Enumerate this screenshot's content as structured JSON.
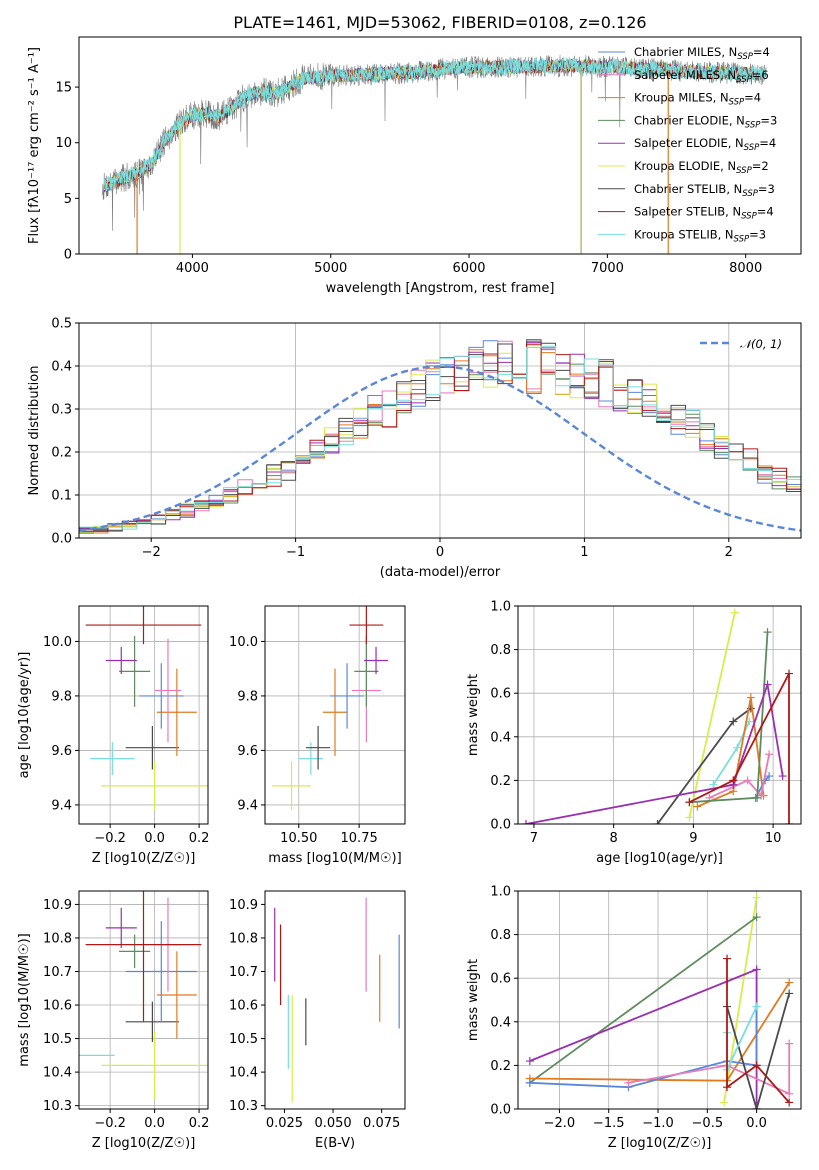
{
  "figure_title": "PLATE=1461, MJD=53062, FIBERID=0108, z=0.126",
  "colors": {
    "blue": "#5a88d6",
    "orange": "#e07b22",
    "green": "#5e8c5e",
    "purple": "#9a30b0",
    "yellowgreen": "#d8ec4a",
    "darkgray": "#4a4a4a",
    "red": "#b01818",
    "cyan": "#78dede",
    "pink": "#e87bb8",
    "spectrum_gray": "#7a7a7a",
    "normal_dashed": "#5a88d6"
  },
  "chart_data": [
    {
      "id": "spectrum",
      "type": "line",
      "xlabel": "wavelength [Angstrom, rest frame]",
      "ylabel": "Flux [fλ10⁻¹⁷ erg cm⁻² s⁻¹ A⁻¹]",
      "xlim": [
        3180,
        8400
      ],
      "ylim": [
        0,
        19.5
      ],
      "xticks": [
        "4000",
        "5000",
        "6000",
        "7000",
        "8000"
      ],
      "yticks": [
        "0",
        "5",
        "10",
        "15"
      ],
      "spectrum_envelope": {
        "x": [
          3350,
          3500,
          3600,
          3700,
          3800,
          3900,
          4000,
          4100,
          4200,
          4300,
          4400,
          4500,
          4600,
          4700,
          4800,
          4900,
          5000,
          5200,
          5400,
          5600,
          5800,
          6000,
          6200,
          6400,
          6600,
          6800,
          7000,
          7200,
          7400,
          7600,
          7800,
          8000,
          8150
        ],
        "y": [
          6.0,
          6.8,
          7.2,
          8.0,
          10.2,
          11.6,
          12.5,
          12.6,
          12.3,
          13.3,
          14.3,
          14.6,
          14.4,
          15.0,
          15.8,
          15.9,
          16.0,
          16.1,
          16.2,
          16.3,
          16.6,
          16.8,
          16.8,
          16.8,
          16.9,
          16.9,
          16.8,
          16.7,
          16.6,
          16.4,
          16.3,
          16.2,
          16.1
        ]
      },
      "legend": [
        {
          "label": "Chabrier MILES, N",
          "sub": "SSP",
          "suffix": "=4",
          "color": "#5a88d6"
        },
        {
          "label": "Salpeter MILES, N",
          "sub": "SSP",
          "suffix": "=6",
          "color": "#e87bb8"
        },
        {
          "label": "Kroupa MILES, N",
          "sub": "SSP",
          "suffix": "=4",
          "color": "#e07b22"
        },
        {
          "label": "Chabrier ELODIE, N",
          "sub": "SSP",
          "suffix": "=3",
          "color": "#5e8c5e"
        },
        {
          "label": "Salpeter ELODIE, N",
          "sub": "SSP",
          "suffix": "=4",
          "color": "#9a30b0"
        },
        {
          "label": "Kroupa ELODIE, N",
          "sub": "SSP",
          "suffix": "=2",
          "color": "#d8ec4a"
        },
        {
          "label": "Chabrier STELIB, N",
          "sub": "SSP",
          "suffix": "=3",
          "color": "#4a4a4a"
        },
        {
          "label": "Salpeter STELIB, N",
          "sub": "SSP",
          "suffix": "=4",
          "color": "#b01818"
        },
        {
          "label": "Kroupa STELIB, N",
          "sub": "SSP",
          "suffix": "=3",
          "color": "#78dede"
        }
      ]
    },
    {
      "id": "residual-histogram",
      "type": "line",
      "xlabel": "(data-model)/error",
      "ylabel": "Normed distribution",
      "xlim": [
        -2.5,
        2.5
      ],
      "ylim": [
        0,
        0.5
      ],
      "xticks": [
        "−2",
        "−1",
        "0",
        "1",
        "2"
      ],
      "yticks": [
        "0.0",
        "0.1",
        "0.2",
        "0.3",
        "0.4",
        "0.5"
      ],
      "grid": true,
      "legend": "𝒩(0, 1)",
      "legend_position": "top-right",
      "bin_width": 0.1,
      "bin_start": -2.5,
      "base_hist": [
        0.02,
        0.02,
        0.025,
        0.03,
        0.035,
        0.045,
        0.055,
        0.065,
        0.075,
        0.085,
        0.1,
        0.115,
        0.13,
        0.145,
        0.16,
        0.18,
        0.2,
        0.22,
        0.245,
        0.265,
        0.285,
        0.305,
        0.325,
        0.345,
        0.36,
        0.375,
        0.385,
        0.395,
        0.4,
        0.405,
        0.4,
        0.398,
        0.395,
        0.39,
        0.38,
        0.37,
        0.36,
        0.345,
        0.33,
        0.315,
        0.295,
        0.275,
        0.255,
        0.235,
        0.215,
        0.195,
        0.175,
        0.155,
        0.14,
        0.12,
        0.105,
        0.09,
        0.078,
        0.066,
        0.056,
        0.048,
        0.04,
        0.034,
        0.028,
        0.024
      ]
    },
    {
      "id": "age-vs-z",
      "type": "scatter",
      "xlabel": "Z [log10(Z/Z☉)]",
      "ylabel": "age  [log10(age/yr)]",
      "xlim": [
        -0.34,
        0.24
      ],
      "ylim": [
        9.33,
        10.13
      ],
      "xticks": [
        "−0.2",
        "0.0",
        "0.2"
      ],
      "yticks": [
        "9.4",
        "9.6",
        "9.8",
        "10.0"
      ],
      "grid": true,
      "points": [
        {
          "x": 0.0,
          "y": 9.47,
          "ex": 0.24,
          "ey": 0.09,
          "color": "#d8ec4a"
        },
        {
          "x": -0.19,
          "y": 9.57,
          "ex": 0.1,
          "ey": 0.06,
          "color": "#78dede"
        },
        {
          "x": -0.01,
          "y": 9.61,
          "ex": 0.12,
          "ey": 0.08,
          "color": "#4a4a4a"
        },
        {
          "x": 0.1,
          "y": 9.74,
          "ex": 0.09,
          "ey": 0.16,
          "color": "#e07b22"
        },
        {
          "x": 0.03,
          "y": 9.8,
          "ex": 0.1,
          "ey": 0.12,
          "color": "#5a88d6"
        },
        {
          "x": 0.06,
          "y": 9.82,
          "ex": 0.06,
          "ey": 0.19,
          "color": "#e87bb8"
        },
        {
          "x": -0.09,
          "y": 9.89,
          "ex": 0.07,
          "ey": 0.13,
          "color": "#5e8c5e"
        },
        {
          "x": -0.15,
          "y": 9.93,
          "ex": 0.07,
          "ey": 0.05,
          "color": "#9a30b0"
        },
        {
          "x": -0.05,
          "y": 10.06,
          "ex": 0.26,
          "ey": 0.07,
          "color": "#b01818"
        }
      ]
    },
    {
      "id": "age-vs-mass",
      "type": "scatter",
      "xlabel": "mass [log10(M/M☉)]",
      "ylabel": "",
      "xlim": [
        10.36,
        10.94
      ],
      "ylim": [
        9.33,
        10.13
      ],
      "xticks": [
        "10.50",
        "10.75"
      ],
      "yticks": [
        "9.4",
        "9.6",
        "9.8",
        "10.0"
      ],
      "grid": true,
      "points": [
        {
          "x": 10.47,
          "y": 9.47,
          "ex": 0.08,
          "ey": 0.09,
          "color": "#d8ec4a"
        },
        {
          "x": 10.55,
          "y": 9.57,
          "ex": 0.05,
          "ey": 0.06,
          "color": "#78dede"
        },
        {
          "x": 10.58,
          "y": 9.61,
          "ex": 0.05,
          "ey": 0.08,
          "color": "#4a4a4a"
        },
        {
          "x": 10.65,
          "y": 9.74,
          "ex": 0.05,
          "ey": 0.16,
          "color": "#e07b22"
        },
        {
          "x": 10.7,
          "y": 9.8,
          "ex": 0.07,
          "ey": 0.12,
          "color": "#5a88d6"
        },
        {
          "x": 10.78,
          "y": 9.82,
          "ex": 0.06,
          "ey": 0.19,
          "color": "#e87bb8"
        },
        {
          "x": 10.78,
          "y": 9.89,
          "ex": 0.05,
          "ey": 0.13,
          "color": "#5e8c5e"
        },
        {
          "x": 10.82,
          "y": 9.93,
          "ex": 0.05,
          "ey": 0.05,
          "color": "#9a30b0"
        },
        {
          "x": 10.78,
          "y": 10.06,
          "ex": 0.07,
          "ey": 0.07,
          "color": "#b01818"
        }
      ]
    },
    {
      "id": "weight-vs-age",
      "type": "line",
      "xlabel": "age  [log10(age/yr)]",
      "ylabel": "mass weight",
      "xlim": [
        6.8,
        10.35
      ],
      "ylim": [
        0,
        1
      ],
      "xticks": [
        "7",
        "8",
        "9",
        "10"
      ],
      "yticks": [
        "0.0",
        "0.2",
        "0.4",
        "0.6",
        "0.8",
        "1.0"
      ],
      "grid": true,
      "series": [
        {
          "color": "#d8ec4a",
          "x": [
            8.95,
            9.52
          ],
          "y": [
            0.03,
            0.97
          ]
        },
        {
          "color": "#78dede",
          "x": [
            9.25,
            9.55,
            9.7
          ],
          "y": [
            0.18,
            0.35,
            0.47
          ]
        },
        {
          "color": "#4a4a4a",
          "x": [
            8.55,
            9.5,
            9.72
          ],
          "y": [
            0.0,
            0.47,
            0.53
          ]
        },
        {
          "color": "#e07b22",
          "x": [
            9.05,
            9.5,
            9.72,
            9.88
          ],
          "y": [
            0.08,
            0.15,
            0.58,
            0.13
          ]
        },
        {
          "color": "#5a88d6",
          "x": [
            9.78,
            9.9,
            9.95
          ],
          "y": [
            0.12,
            0.2,
            0.22
          ]
        },
        {
          "color": "#e87bb8",
          "x": [
            9.2,
            9.68,
            9.85,
            9.95
          ],
          "y": [
            0.12,
            0.2,
            0.13,
            0.32
          ]
        },
        {
          "color": "#5e8c5e",
          "x": [
            8.95,
            9.8,
            9.93
          ],
          "y": [
            0.1,
            0.12,
            0.88
          ]
        },
        {
          "color": "#9a30b0",
          "x": [
            6.9,
            9.5,
            9.93,
            10.12
          ],
          "y": [
            0.0,
            0.18,
            0.64,
            0.22
          ]
        },
        {
          "color": "#b01818",
          "x": [
            8.95,
            9.5,
            10.2,
            10.2
          ],
          "y": [
            0.1,
            0.2,
            0.69,
            0.0
          ]
        }
      ]
    },
    {
      "id": "mass-vs-z",
      "type": "scatter",
      "xlabel": "Z [log10(Z/Z☉)]",
      "ylabel": "mass [log10(M/M☉)]",
      "xlim": [
        -0.34,
        0.24
      ],
      "ylim": [
        10.29,
        10.94
      ],
      "xticks": [
        "−0.2",
        "0.0",
        "0.2"
      ],
      "yticks": [
        "10.3",
        "10.4",
        "10.5",
        "10.6",
        "10.7",
        "10.8",
        "10.9"
      ],
      "grid": true,
      "points": [
        {
          "x": -0.28,
          "y": 10.45,
          "ex": 0.1,
          "ey": 0.0,
          "color": "#78dede"
        },
        {
          "x": 0.0,
          "y": 10.42,
          "ex": 0.24,
          "ey": 0.1,
          "color": "#d8ec4a"
        },
        {
          "x": -0.01,
          "y": 10.55,
          "ex": 0.12,
          "ey": 0.06,
          "color": "#4a4a4a"
        },
        {
          "x": 0.1,
          "y": 10.63,
          "ex": 0.09,
          "ey": 0.13,
          "color": "#e07b22"
        },
        {
          "x": 0.03,
          "y": 10.7,
          "ex": 0.16,
          "ey": 0.15,
          "color": "#5a88d6"
        },
        {
          "x": 0.06,
          "y": 10.78,
          "ex": 0.06,
          "ey": 0.14,
          "color": "#e87bb8"
        },
        {
          "x": -0.09,
          "y": 10.76,
          "ex": 0.07,
          "ey": 0.05,
          "color": "#5e8c5e"
        },
        {
          "x": -0.15,
          "y": 10.83,
          "ex": 0.07,
          "ey": 0.06,
          "color": "#9a30b0"
        },
        {
          "x": -0.05,
          "y": 10.78,
          "ex": 0.26,
          "ey": 0.23,
          "color": "#b01818"
        }
      ]
    },
    {
      "id": "mass-vs-ebv",
      "type": "scatter",
      "xlabel": "E(B-V)",
      "ylabel": "",
      "xlim": [
        0.015,
        0.087
      ],
      "ylim": [
        10.29,
        10.94
      ],
      "xticks": [
        "0.025",
        "0.050",
        "0.075"
      ],
      "yticks": [
        "10.3",
        "10.4",
        "10.5",
        "10.6",
        "10.7",
        "10.8",
        "10.9"
      ],
      "grid": false,
      "points": [
        {
          "x": 0.02,
          "y": 10.78,
          "ex": 0.0,
          "ey": 0.11,
          "color": "#9a30b0"
        },
        {
          "x": 0.023,
          "y": 10.72,
          "ex": 0.0,
          "ey": 0.12,
          "color": "#b01818"
        },
        {
          "x": 0.027,
          "y": 10.52,
          "ex": 0.0,
          "ey": 0.11,
          "color": "#78dede"
        },
        {
          "x": 0.029,
          "y": 10.47,
          "ex": 0.0,
          "ey": 0.16,
          "color": "#d8ec4a"
        },
        {
          "x": 0.036,
          "y": 10.55,
          "ex": 0.0,
          "ey": 0.07,
          "color": "#4a4a4a"
        },
        {
          "x": 0.067,
          "y": 10.78,
          "ex": 0.0,
          "ey": 0.14,
          "color": "#e87bb8"
        },
        {
          "x": 0.074,
          "y": 10.65,
          "ex": 0.0,
          "ey": 0.1,
          "color": "#e07b22"
        },
        {
          "x": 0.084,
          "y": 10.67,
          "ex": 0.0,
          "ey": 0.14,
          "color": "#5a88d6"
        }
      ]
    },
    {
      "id": "weight-vs-z",
      "type": "line",
      "xlabel": "Z [log10(Z/Z☉)]",
      "ylabel": "mass weight",
      "xlim": [
        -2.42,
        0.45
      ],
      "ylim": [
        0,
        1
      ],
      "xticks": [
        "−2.0",
        "−1.5",
        "−1.0",
        "−0.5",
        "0.0"
      ],
      "yticks": [
        "0.0",
        "0.2",
        "0.4",
        "0.6",
        "0.8",
        "1.0"
      ],
      "grid": true,
      "series": [
        {
          "color": "#d8ec4a",
          "x": [
            -0.33,
            0.0
          ],
          "y": [
            0.03,
            0.97
          ]
        },
        {
          "color": "#5e8c5e",
          "x": [
            -2.3,
            0.0
          ],
          "y": [
            0.12,
            0.88
          ]
        },
        {
          "color": "#9a30b0",
          "x": [
            -2.3,
            0.0,
            0.0
          ],
          "y": [
            0.22,
            0.64,
            0.0
          ]
        },
        {
          "color": "#e07b22",
          "x": [
            -2.3,
            -0.3,
            0.33
          ],
          "y": [
            0.14,
            0.13,
            0.58
          ]
        },
        {
          "color": "#5a88d6",
          "x": [
            -2.3,
            -1.3,
            -0.3,
            0.0,
            0.0
          ],
          "y": [
            0.12,
            0.1,
            0.22,
            0.2,
            0.47
          ]
        },
        {
          "color": "#e87bb8",
          "x": [
            -1.3,
            -0.3,
            0.33,
            0.33
          ],
          "y": [
            0.12,
            0.2,
            0.07,
            0.3
          ]
        },
        {
          "color": "#4a4a4a",
          "x": [
            -0.3,
            0.0,
            0.33
          ],
          "y": [
            0.47,
            0.0,
            0.53
          ]
        },
        {
          "color": "#78dede",
          "x": [
            -0.3,
            -0.3,
            0.0
          ],
          "y": [
            0.35,
            0.18,
            0.47
          ]
        },
        {
          "color": "#b01818",
          "x": [
            -0.3,
            -0.3,
            0.0,
            0.33
          ],
          "y": [
            0.69,
            0.1,
            0.2,
            0.03
          ]
        }
      ]
    }
  ]
}
